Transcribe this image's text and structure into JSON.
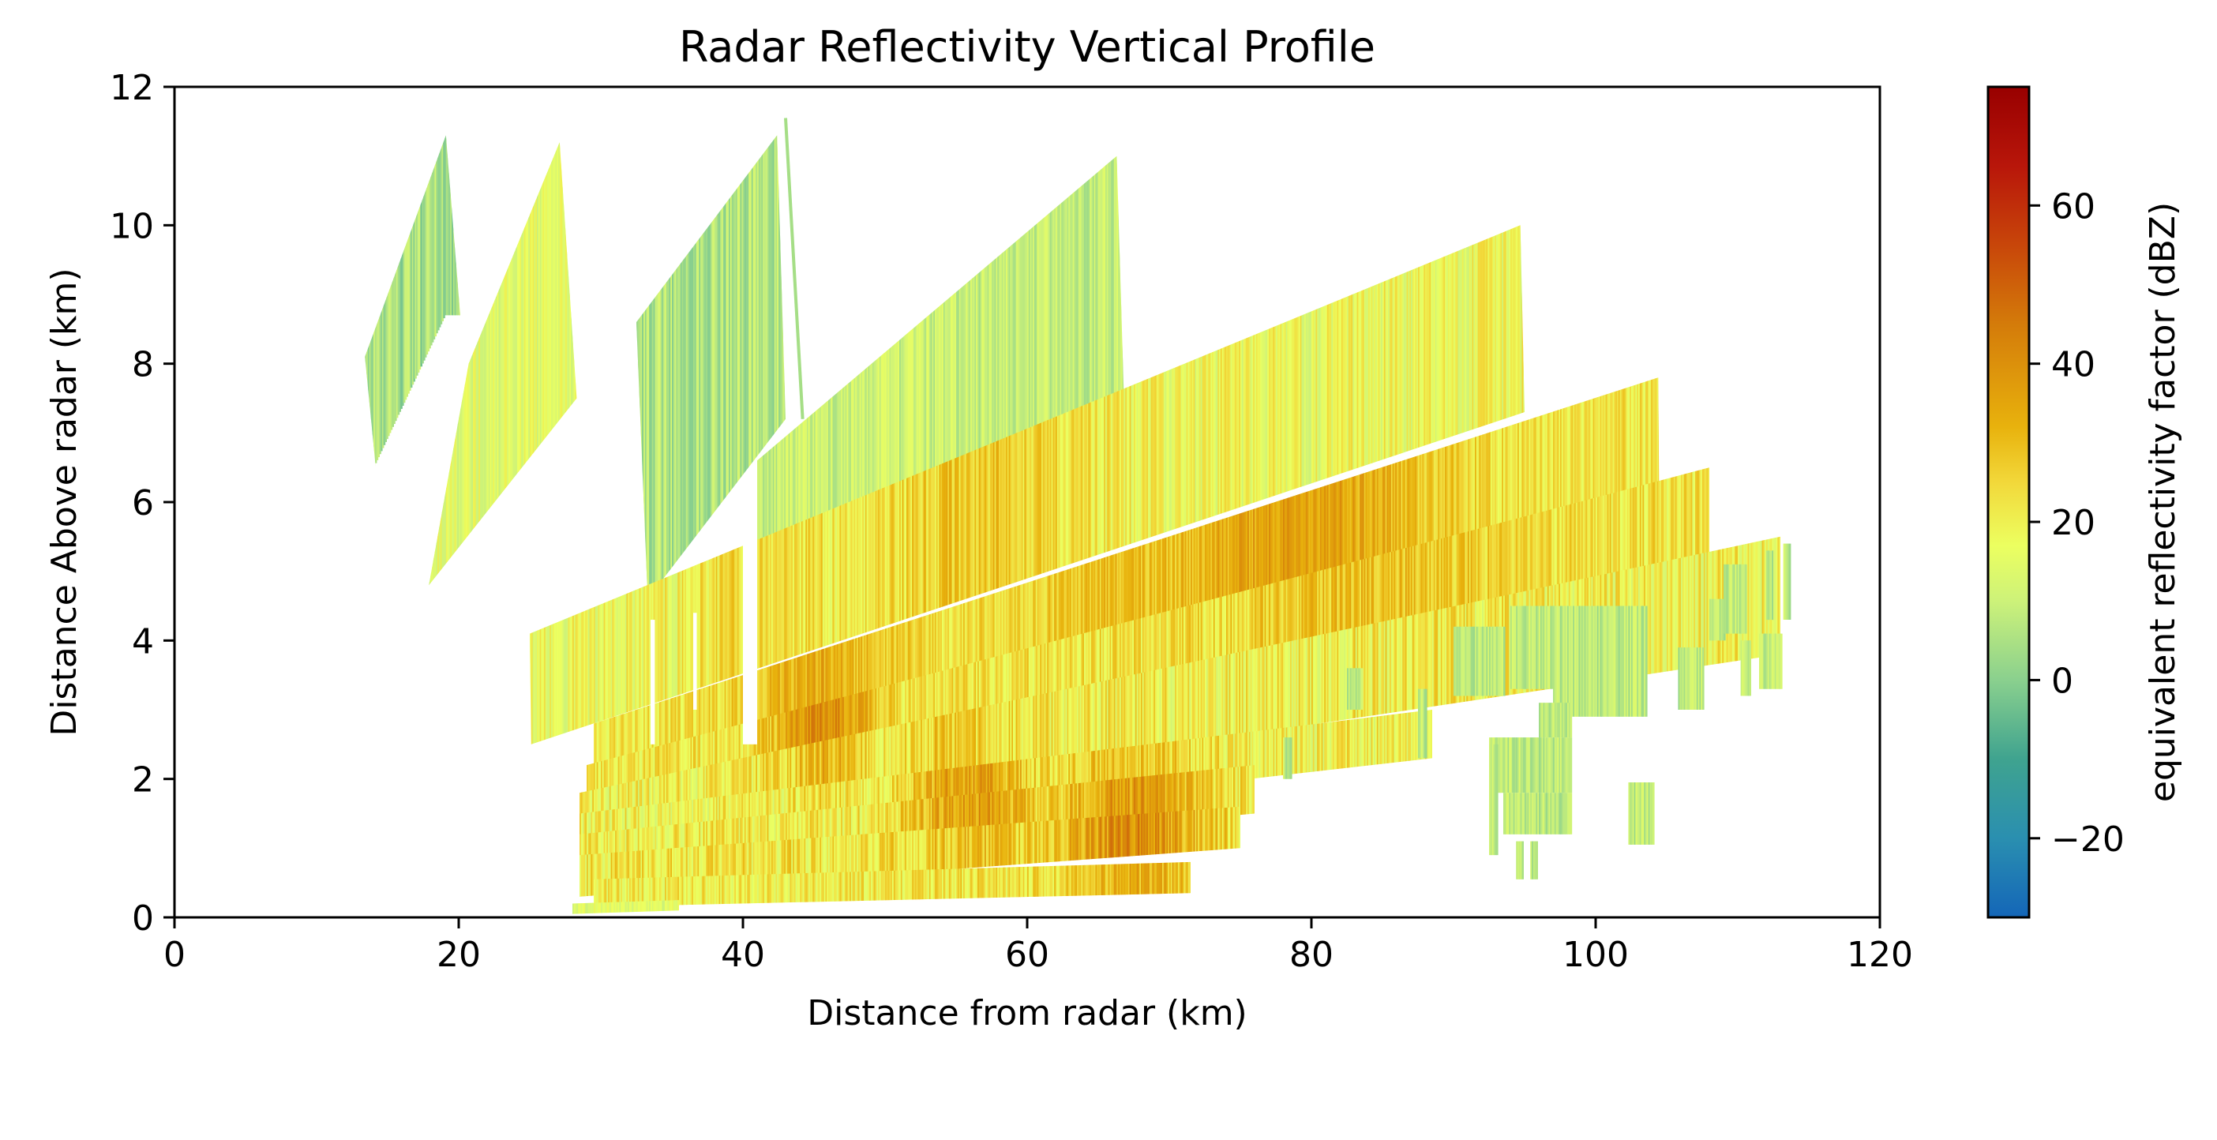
{
  "chart_data": {
    "type": "heatmap",
    "title": "Radar Reflectivity Vertical Profile",
    "xlabel": "Distance from radar (km)",
    "ylabel": "Distance Above radar  (km)",
    "xlim": [
      0,
      120
    ],
    "ylim": [
      0,
      12
    ],
    "xticks": [
      0,
      20,
      40,
      60,
      80,
      100,
      120
    ],
    "yticks": [
      0,
      2,
      4,
      6,
      8,
      10,
      12
    ],
    "colorbar": {
      "label": "equivalent reflectivity factor (dBZ)",
      "range": [
        -30,
        75
      ],
      "ticks": [
        -20,
        0,
        20,
        40,
        60
      ],
      "tick_labels": [
        "−20",
        "0",
        "20",
        "40",
        "60"
      ],
      "stops": [
        {
          "value": -30,
          "color": "#1466b8"
        },
        {
          "value": -20,
          "color": "#2a8fb0"
        },
        {
          "value": -10,
          "color": "#3fa38f"
        },
        {
          "value": 0,
          "color": "#8ad08e"
        },
        {
          "value": 10,
          "color": "#cdf279"
        },
        {
          "value": 17,
          "color": "#ecff60"
        },
        {
          "value": 25,
          "color": "#f2d83a"
        },
        {
          "value": 32,
          "color": "#e8b20d"
        },
        {
          "value": 45,
          "color": "#d47b0a"
        },
        {
          "value": 55,
          "color": "#c8460a"
        },
        {
          "value": 65,
          "color": "#b8160a"
        },
        {
          "value": 75,
          "color": "#980000"
        }
      ]
    },
    "sweeps": [
      {
        "x0": 13.5,
        "x1": 19.0,
        "bot0": 7.9,
        "bot1": 10.3,
        "top0": 8.1,
        "top1": 11.3,
        "clip": [
          [
            14.4,
            6.0
          ],
          [
            20.3,
            8.2
          ],
          [
            19.1,
            11.3
          ],
          [
            13.4,
            8.1
          ]
        ],
        "dbz_mean": 4,
        "dbz_var": 8
      },
      {
        "x0": 17.8,
        "x1": 28.3,
        "bot0": 4.8,
        "bot1": 7.5,
        "top0": 8.0,
        "top1": 11.2,
        "clip": [
          [
            17.9,
            4.8
          ],
          [
            28.3,
            7.5
          ],
          [
            27.1,
            11.2
          ],
          [
            20.7,
            8.0
          ]
        ],
        "dbz_mean": 15,
        "dbz_var": 6
      },
      {
        "x0": 32.5,
        "x1": 43.0,
        "bot0": 6.0,
        "bot1": 7.4,
        "top0": 8.6,
        "top1": 11.3,
        "clip": [
          [
            33.3,
            4.6
          ],
          [
            43.0,
            7.2
          ],
          [
            42.4,
            11.3
          ],
          [
            32.5,
            8.6
          ]
        ],
        "dbz_mean": 6,
        "dbz_var": 7
      },
      {
        "x0": 41.0,
        "x1": 67.0,
        "bot0": 4.1,
        "bot1": 6.2,
        "top0": 6.6,
        "top1": 11.0,
        "clip": [
          [
            41.0,
            4.1
          ],
          [
            67.0,
            6.2
          ],
          [
            66.3,
            11.0
          ],
          [
            41.0,
            6.6
          ]
        ],
        "dbz_mean": 9,
        "dbz_var": 6
      },
      {
        "x0": 25.0,
        "x1": 95.0,
        "bot0": 2.5,
        "bot1": 7.3,
        "top0": 4.1,
        "top1": 10.0,
        "clip": [
          [
            25.1,
            2.5
          ],
          [
            95.0,
            7.3
          ],
          [
            94.7,
            10.0
          ],
          [
            25.0,
            4.1
          ]
        ],
        "dbz_mean": 18,
        "dbz_var": 8
      },
      {
        "x0": 29.5,
        "x1": 104.5,
        "bot0": 2.0,
        "bot1": 5.3,
        "top0": 2.8,
        "top1": 7.8,
        "clip": [
          [
            29.5,
            2.0
          ],
          [
            104.5,
            5.3
          ],
          [
            104.4,
            7.8
          ],
          [
            29.5,
            2.8
          ]
        ],
        "dbz_mean": 22,
        "dbz_var": 7
      },
      {
        "x0": 29.0,
        "x1": 108.0,
        "bot0": 1.6,
        "bot1": 4.2,
        "top0": 2.2,
        "top1": 6.5,
        "clip": [
          [
            29.0,
            1.6
          ],
          [
            108.0,
            4.2
          ],
          [
            108.0,
            6.5
          ],
          [
            29.0,
            2.2
          ]
        ],
        "dbz_mean": 22,
        "dbz_var": 8
      },
      {
        "x0": 28.5,
        "x1": 113.0,
        "bot0": 1.2,
        "bot1": 3.8,
        "top0": 1.8,
        "top1": 5.5,
        "clip": [
          [
            28.5,
            1.2
          ],
          [
            113.0,
            3.8
          ],
          [
            113.0,
            5.5
          ],
          [
            28.5,
            1.8
          ]
        ],
        "dbz_mean": 20,
        "dbz_var": 9
      },
      {
        "x0": 28.5,
        "x1": 88.5,
        "bot0": 0.9,
        "bot1": 2.3,
        "top0": 1.5,
        "top1": 3.0,
        "clip": [
          [
            28.5,
            0.9
          ],
          [
            88.5,
            2.3
          ],
          [
            88.5,
            3.0
          ],
          [
            28.5,
            1.5
          ]
        ],
        "dbz_mean": 20,
        "dbz_var": 9
      },
      {
        "x0": 28.5,
        "x1": 76.0,
        "bot0": 0.6,
        "bot1": 1.5,
        "top0": 1.2,
        "top1": 2.2,
        "clip": [
          [
            28.5,
            0.6
          ],
          [
            76.0,
            1.5
          ],
          [
            76.0,
            2.2
          ],
          [
            28.5,
            1.2
          ]
        ],
        "dbz_mean": 21,
        "dbz_var": 9
      },
      {
        "x0": 28.5,
        "x1": 75.0,
        "bot0": 0.3,
        "bot1": 1.0,
        "top0": 0.9,
        "top1": 1.6,
        "clip": [
          [
            28.5,
            0.3
          ],
          [
            75.0,
            1.0
          ],
          [
            75.0,
            1.6
          ],
          [
            28.5,
            0.9
          ]
        ],
        "dbz_mean": 22,
        "dbz_var": 9
      },
      {
        "x0": 29.5,
        "x1": 71.5,
        "bot0": 0.15,
        "bot1": 0.35,
        "top0": 0.55,
        "top1": 0.8,
        "clip": [
          [
            29.5,
            0.15
          ],
          [
            71.5,
            0.35
          ],
          [
            71.5,
            0.8
          ],
          [
            29.5,
            0.55
          ]
        ],
        "dbz_mean": 21,
        "dbz_var": 8
      },
      {
        "x0": 28.0,
        "x1": 35.5,
        "bot0": 0.05,
        "bot1": 0.1,
        "top0": 0.2,
        "top1": 0.25,
        "clip": [
          [
            28.0,
            0.05
          ],
          [
            35.5,
            0.1
          ],
          [
            35.5,
            0.25
          ],
          [
            28.0,
            0.2
          ]
        ],
        "dbz_mean": 14,
        "dbz_var": 5
      }
    ],
    "hotspots": [
      {
        "x": 45.5,
        "y": 2.7,
        "rx": 3.5,
        "ry": 0.8,
        "dbz": 40
      },
      {
        "x": 56.0,
        "y": 1.7,
        "rx": 4.5,
        "ry": 0.8,
        "dbz": 35
      },
      {
        "x": 67.5,
        "y": 1.3,
        "rx": 5.0,
        "ry": 1.0,
        "dbz": 38
      },
      {
        "x": 62.0,
        "y": 5.2,
        "rx": 12.0,
        "ry": 1.0,
        "dbz": 30
      },
      {
        "x": 80.0,
        "y": 5.0,
        "rx": 12.0,
        "ry": 0.9,
        "dbz": 30
      },
      {
        "x": 44.0,
        "y": 3.8,
        "rx": 6.0,
        "ry": 1.0,
        "dbz": 30
      }
    ],
    "stripe_km": 0.1,
    "gaps": [
      {
        "x": 36.5,
        "y0": 3.0,
        "y1": 4.4,
        "w": 0.25
      },
      {
        "x": 40.0,
        "y0": 2.5,
        "y1": 6.2,
        "w": 1.0
      },
      {
        "x": 33.5,
        "y0": 2.5,
        "y1": 4.3,
        "w": 0.3
      }
    ],
    "fragments": [
      {
        "x0": 90.0,
        "x1": 93.5,
        "y0": 3.2,
        "y1": 4.2
      },
      {
        "x0": 94.0,
        "x1": 97.0,
        "y0": 3.3,
        "y1": 4.5
      },
      {
        "x0": 97.0,
        "x1": 103.5,
        "y0": 2.9,
        "y1": 4.5
      },
      {
        "x0": 96.0,
        "x1": 98.2,
        "y0": 2.6,
        "y1": 3.1
      },
      {
        "x0": 92.5,
        "x1": 98.2,
        "y0": 1.8,
        "y1": 2.6
      },
      {
        "x0": 92.5,
        "x1": 93.0,
        "y0": 0.9,
        "y1": 2.5
      },
      {
        "x0": 93.5,
        "x1": 98.2,
        "y0": 1.2,
        "y1": 1.8
      },
      {
        "x0": 94.4,
        "x1": 94.8,
        "y0": 0.55,
        "y1": 1.1
      },
      {
        "x0": 95.4,
        "x1": 95.8,
        "y0": 0.55,
        "y1": 1.1
      },
      {
        "x0": 102.3,
        "x1": 104.0,
        "y0": 1.05,
        "y1": 1.95
      },
      {
        "x0": 105.8,
        "x1": 107.5,
        "y0": 3.0,
        "y1": 3.9
      },
      {
        "x0": 108.0,
        "x1": 109.0,
        "y0": 4.0,
        "y1": 4.6
      },
      {
        "x0": 109.0,
        "x1": 110.5,
        "y0": 4.1,
        "y1": 5.1
      },
      {
        "x0": 110.2,
        "x1": 110.8,
        "y0": 3.2,
        "y1": 4.0
      },
      {
        "x0": 111.5,
        "x1": 113.0,
        "y0": 3.3,
        "y1": 4.1
      },
      {
        "x0": 112.0,
        "x1": 112.5,
        "y0": 4.3,
        "y1": 5.3
      },
      {
        "x0": 113.2,
        "x1": 113.6,
        "y0": 4.3,
        "y1": 5.4
      },
      {
        "x0": 78.0,
        "x1": 78.5,
        "y0": 2.0,
        "y1": 2.6
      },
      {
        "x0": 87.5,
        "x1": 88.0,
        "y0": 2.3,
        "y1": 3.3
      },
      {
        "x0": 82.5,
        "x1": 83.5,
        "y0": 3.0,
        "y1": 3.6
      }
    ],
    "thin_beam": {
      "x0": 43.0,
      "x1": 44.2,
      "y0": 11.55,
      "y1": 7.2,
      "dbz": 4
    }
  }
}
